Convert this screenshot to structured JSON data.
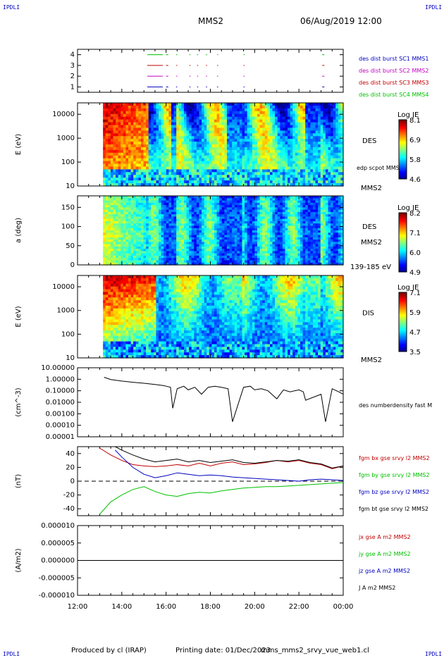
{
  "header": {
    "corner_left": "IPDLI",
    "corner_right": "IPDLI",
    "spacecraft": "MMS2",
    "datetime": "06/Aug/2019 12:00"
  },
  "footer": {
    "produced_by": "Produced by cl (IRAP)",
    "printing_date": "Printing date: 01/Dec/2023",
    "filename": "mms_mms2_srvy_vue_web1.cl",
    "corner_left": "IPDLI",
    "corner_right": "IPDLI"
  },
  "time_axis": {
    "start_hour": 12,
    "end_hour": 24,
    "tick_labels": [
      "12:00",
      "14:00",
      "16:00",
      "18:00",
      "20:00",
      "22:00",
      "00:00"
    ]
  },
  "chart_data": [
    {
      "id": "availability",
      "type": "timeline",
      "ylim": [
        0.5,
        4.5
      ],
      "yticks": [
        "1",
        "2",
        "3",
        "4"
      ],
      "series": [
        {
          "name": "des dist burst SC1 MMS1",
          "color": "#0000c0",
          "row": 1,
          "intervals": [
            [
              15.15,
              15.85
            ],
            [
              16.0,
              16.1
            ],
            [
              16.45,
              16.5
            ],
            [
              17.05,
              17.1
            ],
            [
              17.4,
              17.45
            ],
            [
              17.8,
              17.85
            ],
            [
              18.3,
              18.35
            ],
            [
              19.5,
              19.55
            ],
            [
              23.05,
              23.15
            ]
          ]
        },
        {
          "name": "des dist burst SC2 MMS2",
          "color": "#c000c0",
          "row": 2,
          "intervals": [
            [
              15.15,
              15.85
            ],
            [
              16.0,
              16.1
            ],
            [
              16.45,
              16.5
            ],
            [
              17.05,
              17.1
            ],
            [
              17.4,
              17.45
            ],
            [
              17.8,
              17.85
            ],
            [
              18.3,
              18.35
            ],
            [
              19.5,
              19.55
            ],
            [
              23.05,
              23.15
            ]
          ]
        },
        {
          "name": "des dist burst SC3 MMS3",
          "color": "#c00000",
          "row": 3,
          "intervals": [
            [
              15.15,
              15.85
            ],
            [
              16.0,
              16.1
            ],
            [
              16.45,
              16.5
            ],
            [
              17.05,
              17.1
            ],
            [
              17.4,
              17.45
            ],
            [
              17.8,
              17.85
            ],
            [
              18.3,
              18.35
            ],
            [
              19.5,
              19.55
            ],
            [
              23.05,
              23.15
            ]
          ]
        },
        {
          "name": "des dist burst SC4 MMS4",
          "color": "#00c000",
          "row": 4,
          "intervals": [
            [
              15.15,
              15.85
            ],
            [
              16.0,
              16.1
            ],
            [
              16.45,
              16.5
            ],
            [
              17.05,
              17.1
            ],
            [
              17.4,
              17.45
            ],
            [
              17.8,
              17.85
            ],
            [
              18.3,
              18.35
            ],
            [
              19.5,
              19.55
            ],
            [
              23.05,
              23.15
            ]
          ]
        }
      ]
    },
    {
      "id": "des_energy",
      "type": "heatmap",
      "ylabel": "E (eV)",
      "scale": "log",
      "ylim": [
        10,
        30000
      ],
      "yticks": [
        "10",
        "100",
        "1000",
        "10000"
      ],
      "label": "DES",
      "label2": "edp scpot MMS2",
      "sublabel": "MMS2",
      "colorbar": {
        "title": "Log JE",
        "ticks": [
          "8.1",
          "6.9",
          "5.8",
          "4.6"
        ]
      },
      "data_start_hour": 13.15
    },
    {
      "id": "des_pitch",
      "type": "heatmap",
      "ylabel": "a (deg)",
      "ylim": [
        0,
        180
      ],
      "yticks": [
        "0",
        "50",
        "100",
        "150"
      ],
      "label": "DES",
      "label2": "MMS2",
      "sublabel": "139-185 eV",
      "colorbar": {
        "title": "Log JE",
        "ticks": [
          "8.2",
          "7.1",
          "6.0",
          "4.9"
        ]
      },
      "data_start_hour": 13.15
    },
    {
      "id": "dis_energy",
      "type": "heatmap",
      "ylabel": "E (eV)",
      "scale": "log",
      "ylim": [
        10,
        30000
      ],
      "yticks": [
        "10",
        "100",
        "1000",
        "10000"
      ],
      "label": "DIS",
      "sublabel": "MMS2",
      "colorbar": {
        "title": "Log JE",
        "ticks": [
          "7.1",
          "5.9",
          "4.7",
          "3.5"
        ]
      },
      "data_start_hour": 13.15
    },
    {
      "id": "density",
      "type": "line",
      "ylabel": "(cm^-3)",
      "scale": "log",
      "ylim": [
        1e-05,
        10
      ],
      "yticks": [
        "10.00000",
        "1.00000",
        "0.10000",
        "0.01000",
        "0.00100",
        "0.00010",
        "0.00001"
      ],
      "series": [
        {
          "name": "des numberdensity fast M",
          "color": "#000000",
          "x": [
            13.2,
            13.5,
            14.0,
            14.5,
            15.0,
            15.5,
            15.9,
            16.0,
            16.2,
            16.3,
            16.5,
            16.8,
            17.0,
            17.3,
            17.6,
            17.9,
            18.2,
            18.5,
            18.8,
            19.0,
            19.5,
            19.8,
            20.0,
            20.3,
            20.6,
            21.0,
            21.3,
            21.6,
            21.8,
            22.0,
            22.2,
            22.3,
            23.0,
            23.2,
            23.5,
            23.8,
            24.0
          ],
          "y": [
            1.5,
            0.95,
            0.7,
            0.55,
            0.45,
            0.35,
            0.28,
            0.25,
            0.2,
            0.003,
            0.15,
            0.25,
            0.12,
            0.2,
            0.05,
            0.2,
            0.25,
            0.2,
            0.15,
            0.0002,
            0.2,
            0.25,
            0.12,
            0.15,
            0.1,
            0.02,
            0.12,
            0.08,
            0.1,
            0.12,
            0.08,
            0.015,
            0.05,
            0.0002,
            0.15,
            0.08,
            0.05
          ]
        }
      ]
    },
    {
      "id": "bfield",
      "type": "line",
      "ylabel": "(nT)",
      "ylim": [
        -50,
        50
      ],
      "yticks": [
        "40",
        "20",
        "0",
        "-20",
        "-40"
      ],
      "series": [
        {
          "name": "fgm bx gse srvy l2 MMS2",
          "color": "#c00000",
          "x": [
            13.0,
            13.5,
            14.0,
            14.5,
            15.0,
            15.5,
            16.0,
            16.5,
            17.0,
            17.5,
            18.0,
            18.5,
            19.0,
            19.5,
            20.0,
            20.5,
            21.0,
            21.5,
            22.0,
            22.5,
            23.0,
            23.5,
            24.0
          ],
          "y": [
            48,
            38,
            30,
            24,
            22,
            21,
            22,
            24,
            22,
            26,
            22,
            26,
            28,
            24,
            25,
            27,
            30,
            28,
            30,
            26,
            24,
            18,
            22
          ]
        },
        {
          "name": "fgm by gse srvy l2 MMS2",
          "color": "#00c000",
          "x": [
            13.0,
            13.5,
            14.0,
            14.5,
            15.0,
            15.5,
            16.0,
            16.5,
            17.0,
            17.5,
            18.0,
            18.5,
            19.0,
            19.5,
            20.0,
            20.5,
            21.0,
            21.5,
            22.0,
            22.5,
            23.0,
            23.5,
            24.0
          ],
          "y": [
            -48,
            -30,
            -20,
            -12,
            -8,
            -15,
            -20,
            -22,
            -18,
            -16,
            -17,
            -14,
            -12,
            -10,
            -9,
            -8,
            -8,
            -7,
            -6,
            -5,
            -4,
            -3,
            -2
          ]
        },
        {
          "name": "fgm bz gse srvy l2 MMS2",
          "color": "#0000c0",
          "x": [
            13.7,
            14.0,
            14.5,
            15.0,
            15.5,
            16.0,
            16.5,
            17.0,
            17.5,
            18.0,
            18.5,
            19.0,
            19.5,
            20.0,
            20.5,
            21.0,
            21.5,
            22.0,
            22.5,
            23.0,
            23.5,
            24.0
          ],
          "y": [
            45,
            35,
            20,
            10,
            5,
            8,
            12,
            10,
            8,
            9,
            8,
            6,
            5,
            4,
            3,
            2,
            1,
            0,
            2,
            3,
            2,
            1
          ]
        },
        {
          "name": "fgm bt gse srvy l2 MMS2",
          "color": "#000000",
          "x": [
            13.7,
            14.0,
            14.5,
            15.0,
            15.5,
            16.0,
            16.5,
            17.0,
            17.5,
            18.0,
            18.5,
            19.0,
            19.5,
            20.0,
            20.5,
            21.0,
            21.5,
            22.0,
            22.5,
            23.0,
            23.5,
            24.0
          ],
          "y": [
            50,
            45,
            38,
            32,
            28,
            30,
            32,
            28,
            30,
            27,
            29,
            31,
            27,
            26,
            28,
            30,
            29,
            31,
            27,
            25,
            19,
            22
          ]
        }
      ]
    },
    {
      "id": "current",
      "type": "line",
      "ylabel": "(A/m2)",
      "ylim": [
        -1e-05,
        1e-05
      ],
      "yticks": [
        "0.000010",
        "0.000005",
        "0.000000",
        "-0.000005",
        "-0.000010"
      ],
      "series": [
        {
          "name": "jx gse A m2 MMS2",
          "color": "#c00000",
          "x": [
            12,
            24
          ],
          "y": [
            0,
            0
          ]
        },
        {
          "name": "jy gse A m2 MMS2",
          "color": "#00c000",
          "x": [
            12,
            24
          ],
          "y": [
            0,
            0
          ]
        },
        {
          "name": "jz gse A m2 MMS2",
          "color": "#0000c0",
          "x": [
            12,
            24
          ],
          "y": [
            0,
            0
          ]
        },
        {
          "name": "J A m2 MMS2",
          "color": "#000000",
          "x": [
            12,
            24
          ],
          "y": [
            0,
            0
          ]
        }
      ]
    }
  ]
}
